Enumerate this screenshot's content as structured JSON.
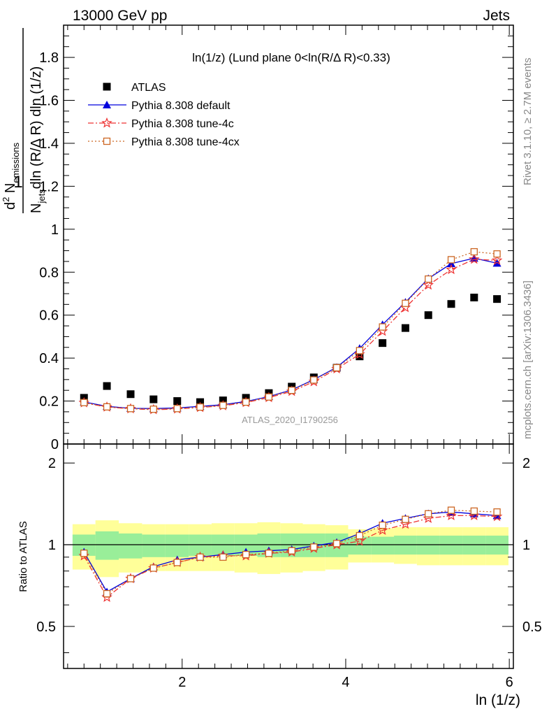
{
  "header": {
    "left": "13000 GeV pp",
    "right": "Jets"
  },
  "side": {
    "rivet": "Rivet 3.1.10, ≥ 2.7M events",
    "mcplots": "mcplots.cern.ch [arXiv:1306.3436]"
  },
  "chart_data": {
    "type": "scatter",
    "title": "ln(1/z) (Lund plane 0<ln(R/Δ R)<0.33)",
    "analysis_label": "ATLAS_2020_I1790256",
    "xlabel": "ln (1/z)",
    "ylabel_main": "1/N_jets d²N_emissions / dln(R/Δ R) dln(1/z)",
    "ylabel_ratio": "Ratio to ATLAS",
    "xlim": [
      0.55,
      6.05
    ],
    "ylim_main": [
      0,
      1.95
    ],
    "ylim_ratio": [
      0.35,
      2.35
    ],
    "x_ticks": [
      2,
      4,
      6
    ],
    "y_ticks_main": [
      0,
      0.2,
      0.4,
      0.6,
      0.8,
      1,
      1.2,
      1.4,
      1.6,
      1.8
    ],
    "y_tick_labels_main": [
      "0",
      "0.2",
      "0.4",
      "0.6",
      "0.8",
      "1",
      "1.2",
      "1.4",
      "1.6",
      "1.8"
    ],
    "y_ticks_ratio": [
      0.5,
      1,
      2
    ],
    "y_tick_labels_ratio": [
      "0.5",
      "1",
      "2"
    ],
    "legend_position": "top-left",
    "x": [
      0.8,
      1.08,
      1.37,
      1.65,
      1.94,
      2.22,
      2.5,
      2.78,
      3.06,
      3.34,
      3.61,
      3.89,
      4.17,
      4.45,
      4.73,
      5.01,
      5.29,
      5.57,
      5.85
    ],
    "series": [
      {
        "name": "ATLAS",
        "marker": "square",
        "color": "#000000",
        "values": [
          0.215,
          0.27,
          0.232,
          0.208,
          0.2,
          0.195,
          0.203,
          0.215,
          0.237,
          0.267,
          0.31,
          0.355,
          0.408,
          0.47,
          0.54,
          0.6,
          0.652,
          0.682,
          0.675
        ],
        "ratio": [
          1,
          1,
          1,
          1,
          1,
          1,
          1,
          1,
          1,
          1,
          1,
          1,
          1,
          1,
          1,
          1,
          1,
          1,
          1
        ]
      },
      {
        "name": "Pythia 8.308 default",
        "marker": "triangle",
        "line": "solid",
        "color": "#0000dd",
        "values": [
          0.196,
          0.175,
          0.166,
          0.165,
          0.168,
          0.175,
          0.183,
          0.198,
          0.221,
          0.252,
          0.3,
          0.357,
          0.445,
          0.556,
          0.66,
          0.77,
          0.84,
          0.865,
          0.842
        ],
        "ratio": [
          0.94,
          0.67,
          0.75,
          0.83,
          0.88,
          0.9,
          0.92,
          0.94,
          0.95,
          0.96,
          0.99,
          1.02,
          1.1,
          1.2,
          1.25,
          1.3,
          1.32,
          1.3,
          1.28
        ]
      },
      {
        "name": "Pythia 8.308 tune-4c",
        "marker": "star",
        "line": "dashdot",
        "color": "#ee3333",
        "values": [
          0.192,
          0.172,
          0.164,
          0.16,
          0.163,
          0.17,
          0.178,
          0.193,
          0.216,
          0.245,
          0.29,
          0.35,
          0.418,
          0.525,
          0.635,
          0.74,
          0.812,
          0.86,
          0.855
        ],
        "ratio": [
          0.91,
          0.64,
          0.75,
          0.82,
          0.86,
          0.9,
          0.91,
          0.91,
          0.93,
          0.94,
          0.97,
          1.0,
          1.03,
          1.13,
          1.19,
          1.25,
          1.28,
          1.28,
          1.27
        ]
      },
      {
        "name": "Pythia 8.308 tune-4cx",
        "marker": "open-square",
        "line": "dotted",
        "color": "#cc6622",
        "values": [
          0.193,
          0.173,
          0.165,
          0.162,
          0.165,
          0.172,
          0.18,
          0.195,
          0.219,
          0.25,
          0.298,
          0.355,
          0.435,
          0.545,
          0.655,
          0.768,
          0.858,
          0.895,
          0.885
        ],
        "ratio": [
          0.93,
          0.66,
          0.75,
          0.82,
          0.86,
          0.9,
          0.9,
          0.92,
          0.93,
          0.95,
          0.98,
          1.01,
          1.08,
          1.18,
          1.24,
          1.3,
          1.34,
          1.33,
          1.32
        ]
      }
    ],
    "uncertainty_bands": {
      "inner_color": "#99ee99",
      "outer_color": "#ffff99",
      "inner_low": [
        0.91,
        0.88,
        0.89,
        0.9,
        0.9,
        0.91,
        0.91,
        0.91,
        0.9,
        0.9,
        0.9,
        0.9,
        0.92,
        0.92,
        0.92,
        0.92,
        0.92,
        0.92,
        0.92
      ],
      "inner_high": [
        1.09,
        1.12,
        1.1,
        1.09,
        1.09,
        1.09,
        1.09,
        1.09,
        1.1,
        1.1,
        1.1,
        1.1,
        1.07,
        1.07,
        1.08,
        1.08,
        1.08,
        1.08,
        1.08
      ],
      "outer_low": [
        0.81,
        0.76,
        0.79,
        0.8,
        0.8,
        0.8,
        0.8,
        0.79,
        0.78,
        0.79,
        0.8,
        0.81,
        0.86,
        0.86,
        0.85,
        0.84,
        0.84,
        0.84,
        0.84
      ],
      "outer_high": [
        1.19,
        1.23,
        1.2,
        1.19,
        1.19,
        1.19,
        1.2,
        1.2,
        1.21,
        1.2,
        1.19,
        1.18,
        1.14,
        1.15,
        1.16,
        1.16,
        1.16,
        1.16,
        1.16
      ]
    }
  }
}
